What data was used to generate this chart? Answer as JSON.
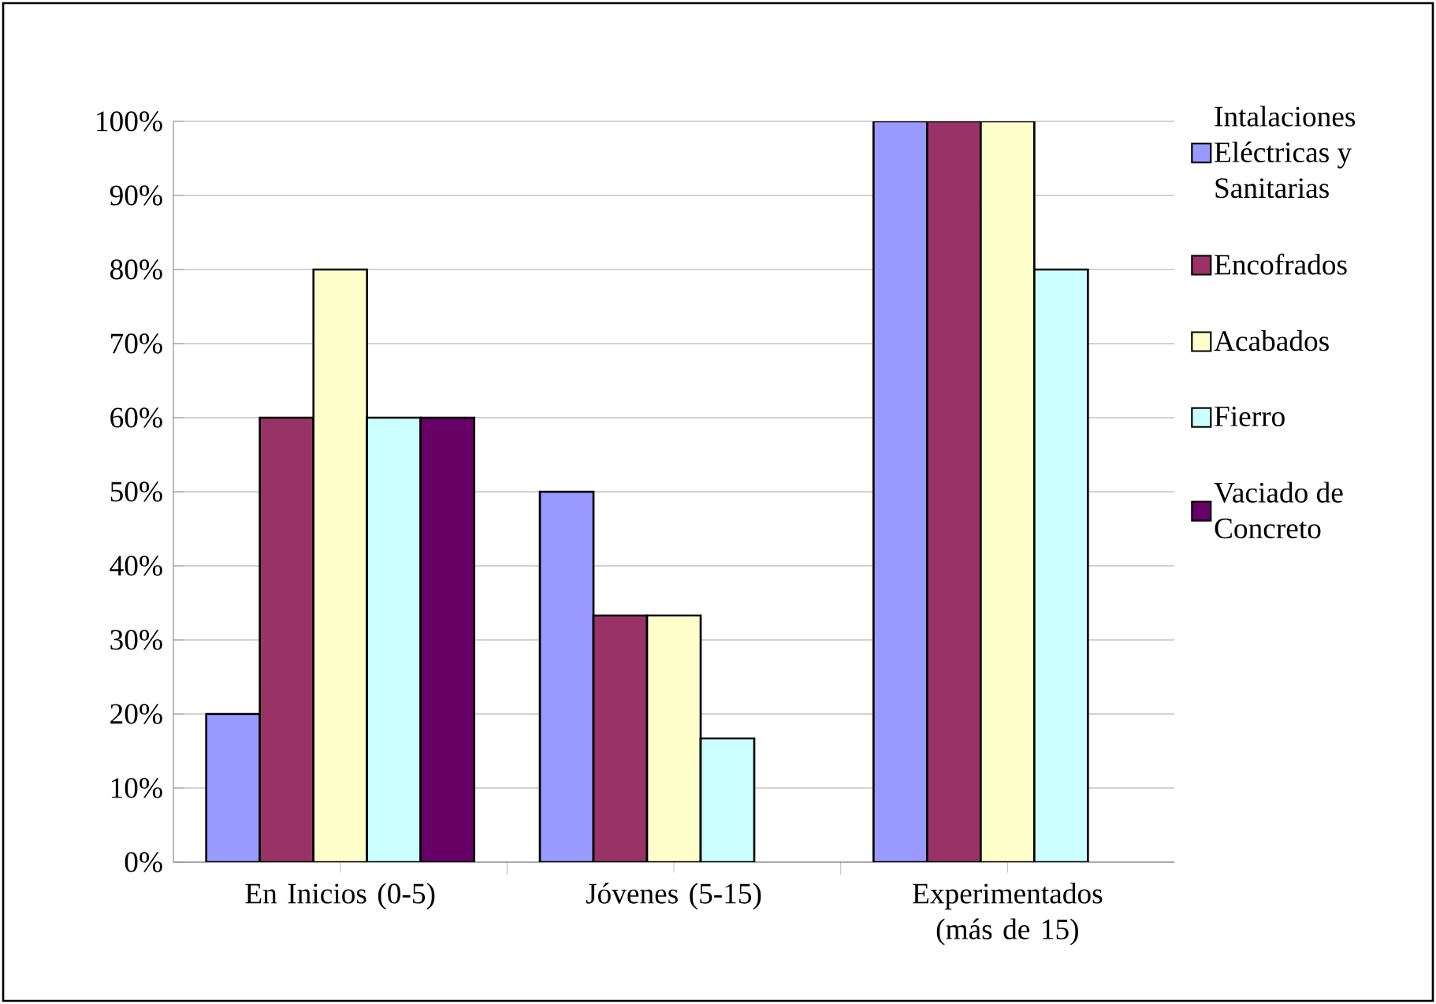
{
  "chart_data": {
    "type": "bar",
    "categories": [
      "En Inicios (0-5)",
      "Jóvenes (5-15)",
      "Experimentados (más de 15)"
    ],
    "series": [
      {
        "name": "Intalaciones Eléctricas y Sanitarias",
        "color": "#9999ff",
        "values": [
          20,
          50,
          100
        ]
      },
      {
        "name": "Encofrados",
        "color": "#993366",
        "values": [
          60,
          33.3,
          100
        ]
      },
      {
        "name": "Acabados",
        "color": "#ffffcc",
        "values": [
          80,
          33.3,
          100
        ]
      },
      {
        "name": "Fierro",
        "color": "#ccffff",
        "values": [
          60,
          16.7,
          80
        ]
      },
      {
        "name": "Vaciado de Concreto",
        "color": "#660066",
        "values": [
          60,
          null,
          null
        ]
      }
    ],
    "ylim": [
      0,
      100
    ],
    "yticks": [
      {
        "value": 0,
        "label": "0%"
      },
      {
        "value": 10,
        "label": "10%"
      },
      {
        "value": 20,
        "label": "20%"
      },
      {
        "value": 30,
        "label": "30%"
      },
      {
        "value": 40,
        "label": "40%"
      },
      {
        "value": 50,
        "label": "50%"
      },
      {
        "value": 60,
        "label": "60%"
      },
      {
        "value": 70,
        "label": "70%"
      },
      {
        "value": 80,
        "label": "80%"
      },
      {
        "value": 90,
        "label": "90%"
      },
      {
        "value": 100,
        "label": "100%"
      }
    ],
    "grid": "y",
    "legend": "right"
  }
}
